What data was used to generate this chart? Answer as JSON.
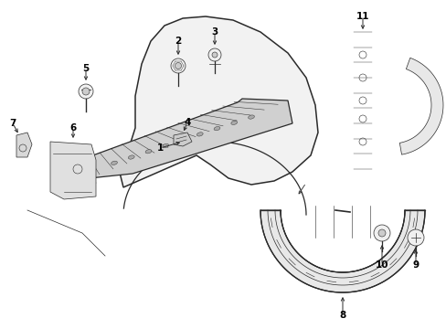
{
  "bg_color": "#ffffff",
  "line_color": "#2a2a2a",
  "label_color": "#000000",
  "figsize": [
    4.89,
    3.6
  ],
  "dpi": 100,
  "lw_main": 0.9,
  "lw_thin": 0.5,
  "label_fontsize": 7.5
}
